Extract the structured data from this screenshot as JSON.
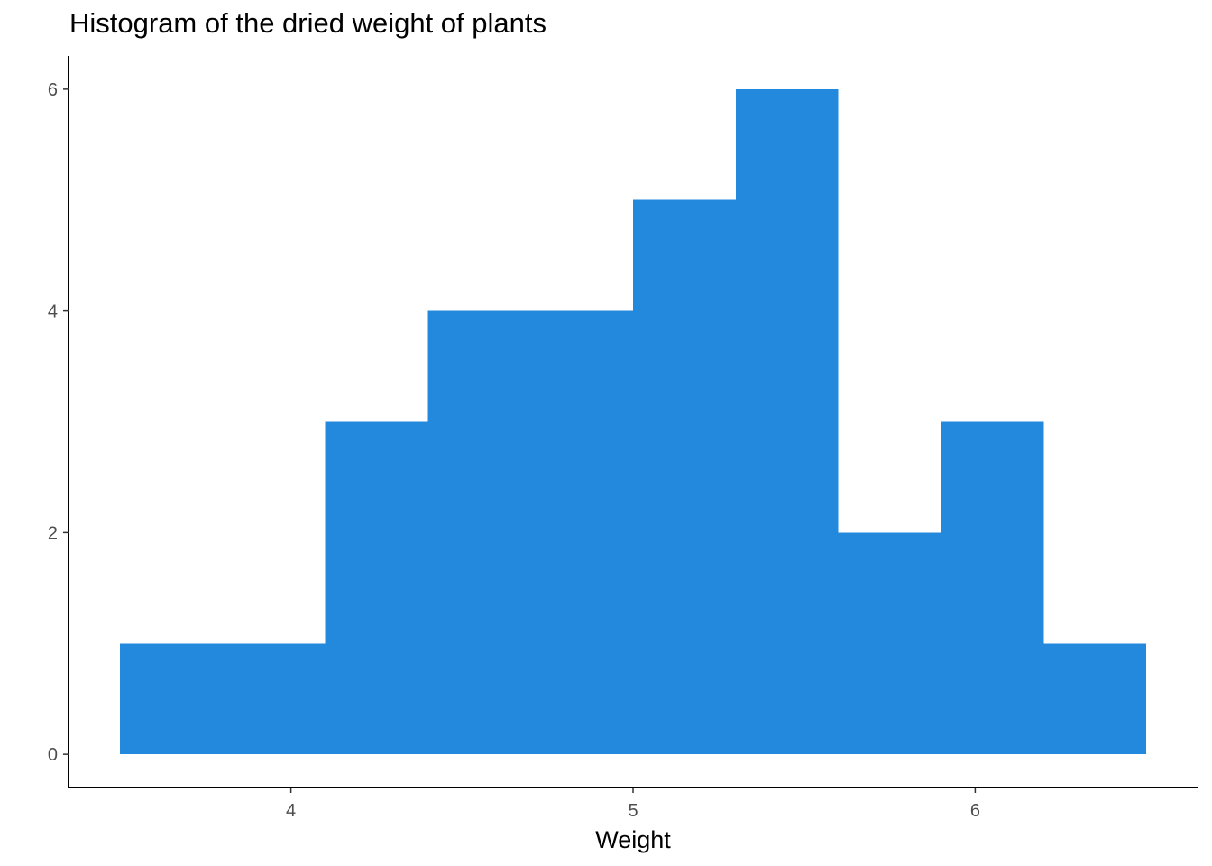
{
  "chart_data": {
    "type": "bar",
    "title": "Histogram of the dried weight of plants",
    "xlabel": "Weight",
    "ylabel": "",
    "bins": [
      {
        "x0": 3.5,
        "x1": 3.8,
        "count": 1
      },
      {
        "x0": 3.8,
        "x1": 4.1,
        "count": 1
      },
      {
        "x0": 4.1,
        "x1": 4.4,
        "count": 3
      },
      {
        "x0": 4.4,
        "x1": 4.7,
        "count": 4
      },
      {
        "x0": 4.7,
        "x1": 5.0,
        "count": 4
      },
      {
        "x0": 5.0,
        "x1": 5.3,
        "count": 5
      },
      {
        "x0": 5.3,
        "x1": 5.6,
        "count": 6
      },
      {
        "x0": 5.6,
        "x1": 5.9,
        "count": 2
      },
      {
        "x0": 5.9,
        "x1": 6.2,
        "count": 3
      },
      {
        "x0": 6.2,
        "x1": 6.5,
        "count": 1
      }
    ],
    "xlim": [
      3.35,
      6.65
    ],
    "ylim": [
      -0.3,
      6.3
    ],
    "x_ticks": [
      4,
      5,
      6
    ],
    "y_ticks": [
      0,
      2,
      4,
      6
    ],
    "grid": false,
    "legend": "none",
    "colors": {
      "bar_fill": "#2389dc",
      "axis_line": "#000000",
      "tick_text": "#4d4d4d"
    }
  }
}
